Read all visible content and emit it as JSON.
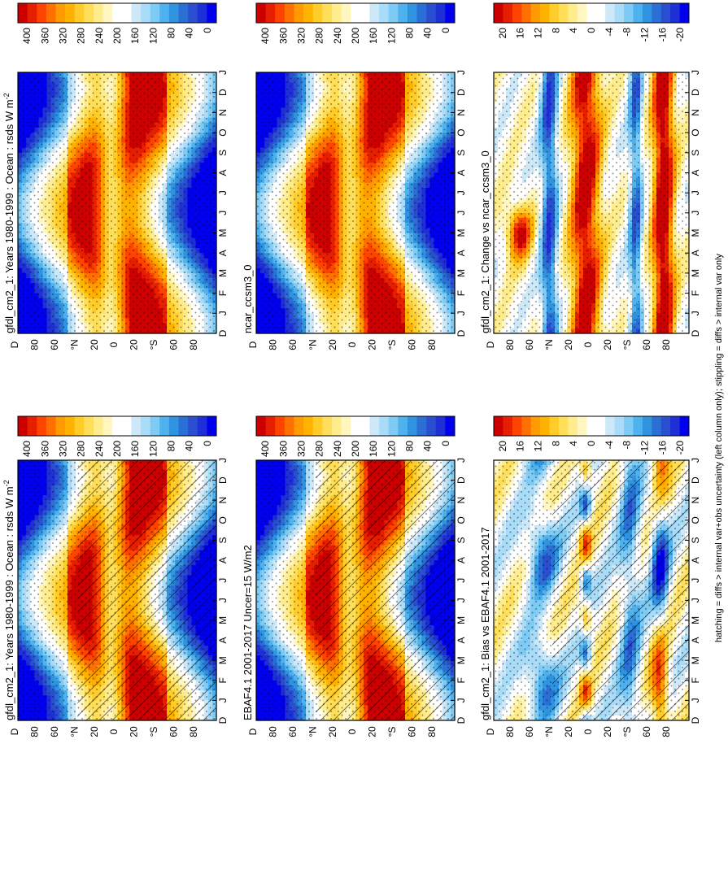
{
  "figure": {
    "footnote": "hatching = diffs > internal var+obs uncertainty (left column only); stippling = diffs > internal var only"
  },
  "chart_data": [
    {
      "type": "heatmap",
      "title": "gfdl_cm2_1: Years 1980-1999 : Ocean : rsds W m",
      "title_superscript": "-2",
      "months": [
        "J",
        "F",
        "M",
        "A",
        "M",
        "J",
        "J",
        "A",
        "S",
        "O",
        "N",
        "D",
        "J"
      ],
      "lat_labels": [
        "D",
        "80",
        "60",
        "°N",
        "20",
        "0",
        "20",
        "°S",
        "60",
        "80"
      ],
      "colorbar": {
        "labels": [
          "400",
          "360",
          "320",
          "280",
          "240",
          "200",
          "160",
          "120",
          "80",
          "40",
          "0"
        ],
        "range": [
          0,
          420
        ]
      },
      "scale": "abs",
      "pattern": "full",
      "hatching": true,
      "stippling": true
    },
    {
      "type": "heatmap",
      "title": "gfdl_cm2_1: Years 1980-1999 : Ocean : rsds W m",
      "title_superscript": "-2",
      "months": [
        "J",
        "F",
        "M",
        "A",
        "M",
        "J",
        "J",
        "A",
        "S",
        "O",
        "N",
        "D",
        "J"
      ],
      "lat_labels": [
        "D",
        "80",
        "60",
        "°N",
        "20",
        "0",
        "20",
        "°S",
        "60",
        "80"
      ],
      "colorbar": {
        "labels": [
          "400",
          "360",
          "320",
          "280",
          "240",
          "200",
          "160",
          "120",
          "80",
          "40",
          "0"
        ],
        "range": [
          0,
          420
        ]
      },
      "scale": "abs",
      "pattern": "full",
      "hatching": false,
      "stippling": true
    },
    {
      "type": "heatmap",
      "title": "EBAF4.1 2001-2017 Uncer=15 W/m2",
      "title_superscript": "",
      "months": [
        "J",
        "F",
        "M",
        "A",
        "M",
        "J",
        "J",
        "A",
        "S",
        "O",
        "N",
        "D",
        "J"
      ],
      "lat_labels": [
        "D",
        "80",
        "60",
        "°N",
        "20",
        "0",
        "20",
        "°S",
        "60",
        "80"
      ],
      "colorbar": {
        "labels": [
          "400",
          "360",
          "320",
          "280",
          "240",
          "200",
          "160",
          "120",
          "80",
          "40",
          "0"
        ],
        "range": [
          0,
          420
        ]
      },
      "scale": "abs",
      "pattern": "full",
      "hatching": true,
      "stippling": true
    },
    {
      "type": "heatmap",
      "title": "ncar_ccsm3_0",
      "title_superscript": "",
      "months": [
        "J",
        "F",
        "M",
        "A",
        "M",
        "J",
        "J",
        "A",
        "S",
        "O",
        "N",
        "D",
        "J"
      ],
      "lat_labels": [
        "D",
        "80",
        "60",
        "°N",
        "20",
        "0",
        "20",
        "°S",
        "60",
        "80"
      ],
      "colorbar": {
        "labels": [
          "400",
          "360",
          "320",
          "280",
          "240",
          "200",
          "160",
          "120",
          "80",
          "40",
          "0"
        ],
        "range": [
          0,
          420
        ]
      },
      "scale": "abs",
      "pattern": "full",
      "hatching": false,
      "stippling": true
    },
    {
      "type": "heatmap",
      "title": "gfdl_cm2_1: Bias vs EBAF4.1 2001-2017",
      "title_superscript": "",
      "months": [
        "J",
        "F",
        "M",
        "A",
        "M",
        "J",
        "J",
        "A",
        "S",
        "O",
        "N",
        "D",
        "J"
      ],
      "lat_labels": [
        "D",
        "80",
        "60",
        "°N",
        "20",
        "0",
        "20",
        "°S",
        "60",
        "80"
      ],
      "colorbar": {
        "labels": [
          "20",
          "16",
          "12",
          "8",
          "4",
          "0",
          "-4",
          "-8",
          "-12",
          "-16",
          "-20"
        ],
        "range": [
          -22,
          22
        ]
      },
      "scale": "diff",
      "pattern": "bias",
      "hatching": true,
      "stippling": true
    },
    {
      "type": "heatmap",
      "title": "gfdl_cm2_1: Change vs ncar_ccsm3_0",
      "title_superscript": "",
      "months": [
        "J",
        "F",
        "M",
        "A",
        "M",
        "J",
        "J",
        "A",
        "S",
        "O",
        "N",
        "D",
        "J"
      ],
      "lat_labels": [
        "D",
        "80",
        "60",
        "°N",
        "20",
        "0",
        "20",
        "°S",
        "60",
        "80"
      ],
      "colorbar": {
        "labels": [
          "20",
          "16",
          "12",
          "8",
          "4",
          "0",
          "-4",
          "-8",
          "-12",
          "-16",
          "-20"
        ],
        "range": [
          -22,
          22
        ]
      },
      "scale": "diff",
      "pattern": "change",
      "hatching": false,
      "stippling": true
    }
  ]
}
